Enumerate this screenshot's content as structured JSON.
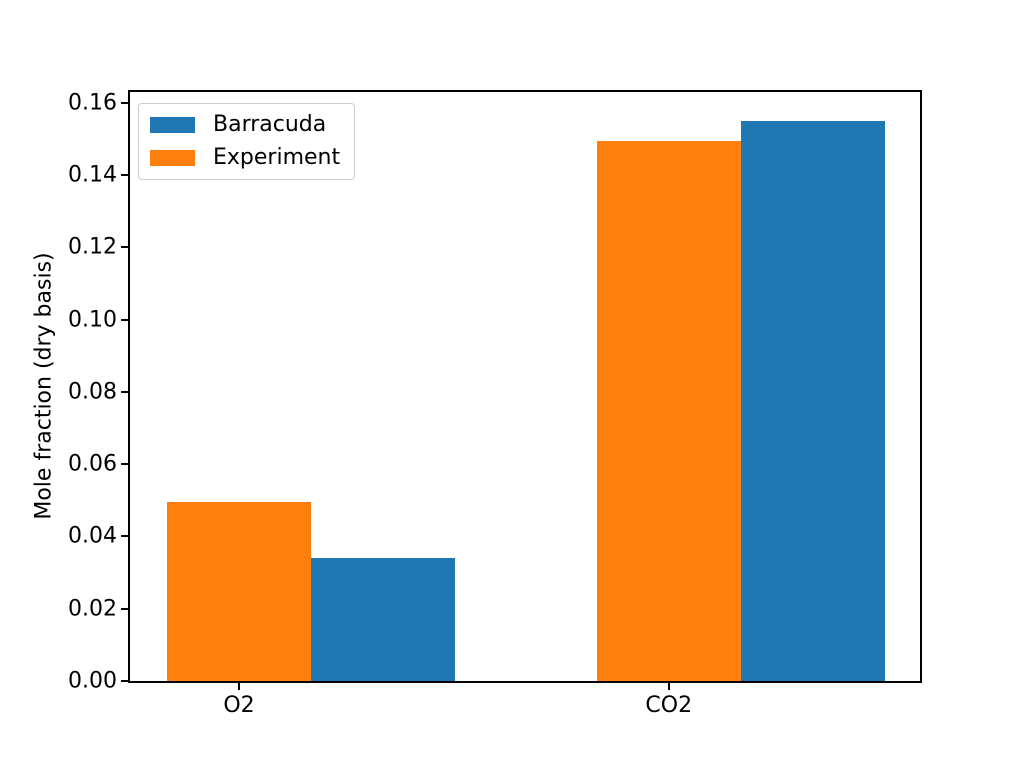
{
  "chart_data": {
    "type": "bar",
    "title": "",
    "xlabel": "",
    "ylabel": "Mole fraction (dry basis)",
    "categories": [
      "O2",
      "CO2"
    ],
    "series": [
      {
        "name": "Barracuda",
        "color": "#1f77b4",
        "values": [
          0.034,
          0.155
        ]
      },
      {
        "name": "Experiment",
        "color": "#ff7f0e",
        "values": [
          0.0496,
          0.1495
        ]
      }
    ],
    "bar_order": [
      "Experiment",
      "Barracuda"
    ],
    "ylim": [
      0,
      0.163
    ],
    "yticks": [
      {
        "value": 0.0,
        "label": "0.00"
      },
      {
        "value": 0.02,
        "label": "0.02"
      },
      {
        "value": 0.04,
        "label": "0.04"
      },
      {
        "value": 0.06,
        "label": "0.06"
      },
      {
        "value": 0.08,
        "label": "0.08"
      },
      {
        "value": 0.1,
        "label": "0.10"
      },
      {
        "value": 0.12,
        "label": "0.12"
      },
      {
        "value": 0.14,
        "label": "0.14"
      },
      {
        "value": 0.16,
        "label": "0.16"
      }
    ],
    "grid": false,
    "legend": {
      "position": "upper left",
      "entries": [
        "Barracuda",
        "Experiment"
      ]
    }
  }
}
